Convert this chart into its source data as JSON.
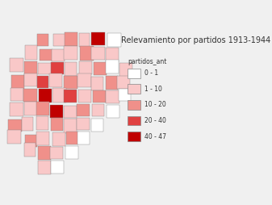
{
  "title": "Relevamiento por partidos 1913-1944",
  "legend_title": "partidos_ant",
  "legend_labels": [
    "0 - 1",
    "1 - 10",
    "10 - 20",
    "20 - 40",
    "40 - 47"
  ],
  "legend_colors": [
    "#ffffff",
    "#f9c8c8",
    "#f0908a",
    "#e04040",
    "#c00000"
  ],
  "background_color": "#f0f0f0",
  "map_background": "#ffffff",
  "figsize": [
    3.37,
    2.54
  ],
  "dpi": 100,
  "title_fontsize": 7,
  "legend_fontsize": 5.5,
  "edge_color": "#888888",
  "edge_width": 0.3
}
